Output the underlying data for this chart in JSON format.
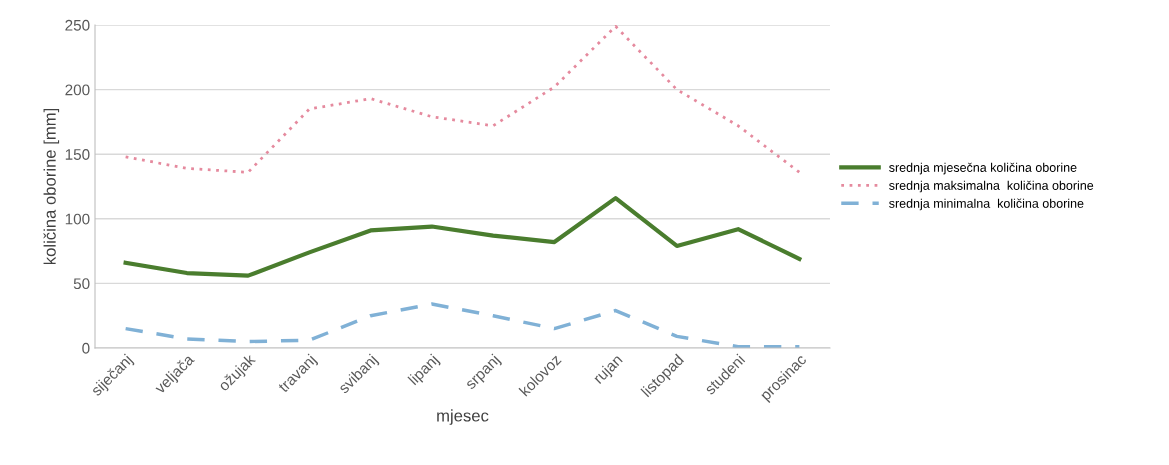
{
  "chart_data": {
    "type": "line",
    "xlabel": "mjesec",
    "ylabel": "količina oborine [mm]",
    "categories": [
      "siječanj",
      "veljača",
      "ožujak",
      "travanj",
      "svibanj",
      "lipanj",
      "srpanj",
      "kolovoz",
      "rujan",
      "listopad",
      "studeni",
      "prosinac"
    ],
    "series": [
      {
        "name": "srednja mjesečna količina oborine",
        "color": "#4a7d2e",
        "line_style": "solid",
        "values": [
          66,
          58,
          56,
          74,
          91,
          94,
          87,
          82,
          116,
          79,
          92,
          69
        ]
      },
      {
        "name": "srednja maksimalna  količina oborine",
        "color": "#e58a9e",
        "line_style": "dotted",
        "values": [
          148,
          139,
          136,
          185,
          193,
          179,
          172,
          202,
          249,
          200,
          172,
          136
        ]
      },
      {
        "name": "srednja minimalna  količina oborine",
        "color": "#80b1d6",
        "line_style": "dashed",
        "values": [
          15,
          7,
          5,
          6,
          25,
          34,
          25,
          15,
          29,
          9,
          1,
          1
        ]
      }
    ],
    "ylim": [
      0,
      250
    ],
    "yticks": [
      0,
      50,
      100,
      150,
      200,
      250
    ],
    "grid": "y",
    "legend": "right",
    "marker": "none"
  }
}
